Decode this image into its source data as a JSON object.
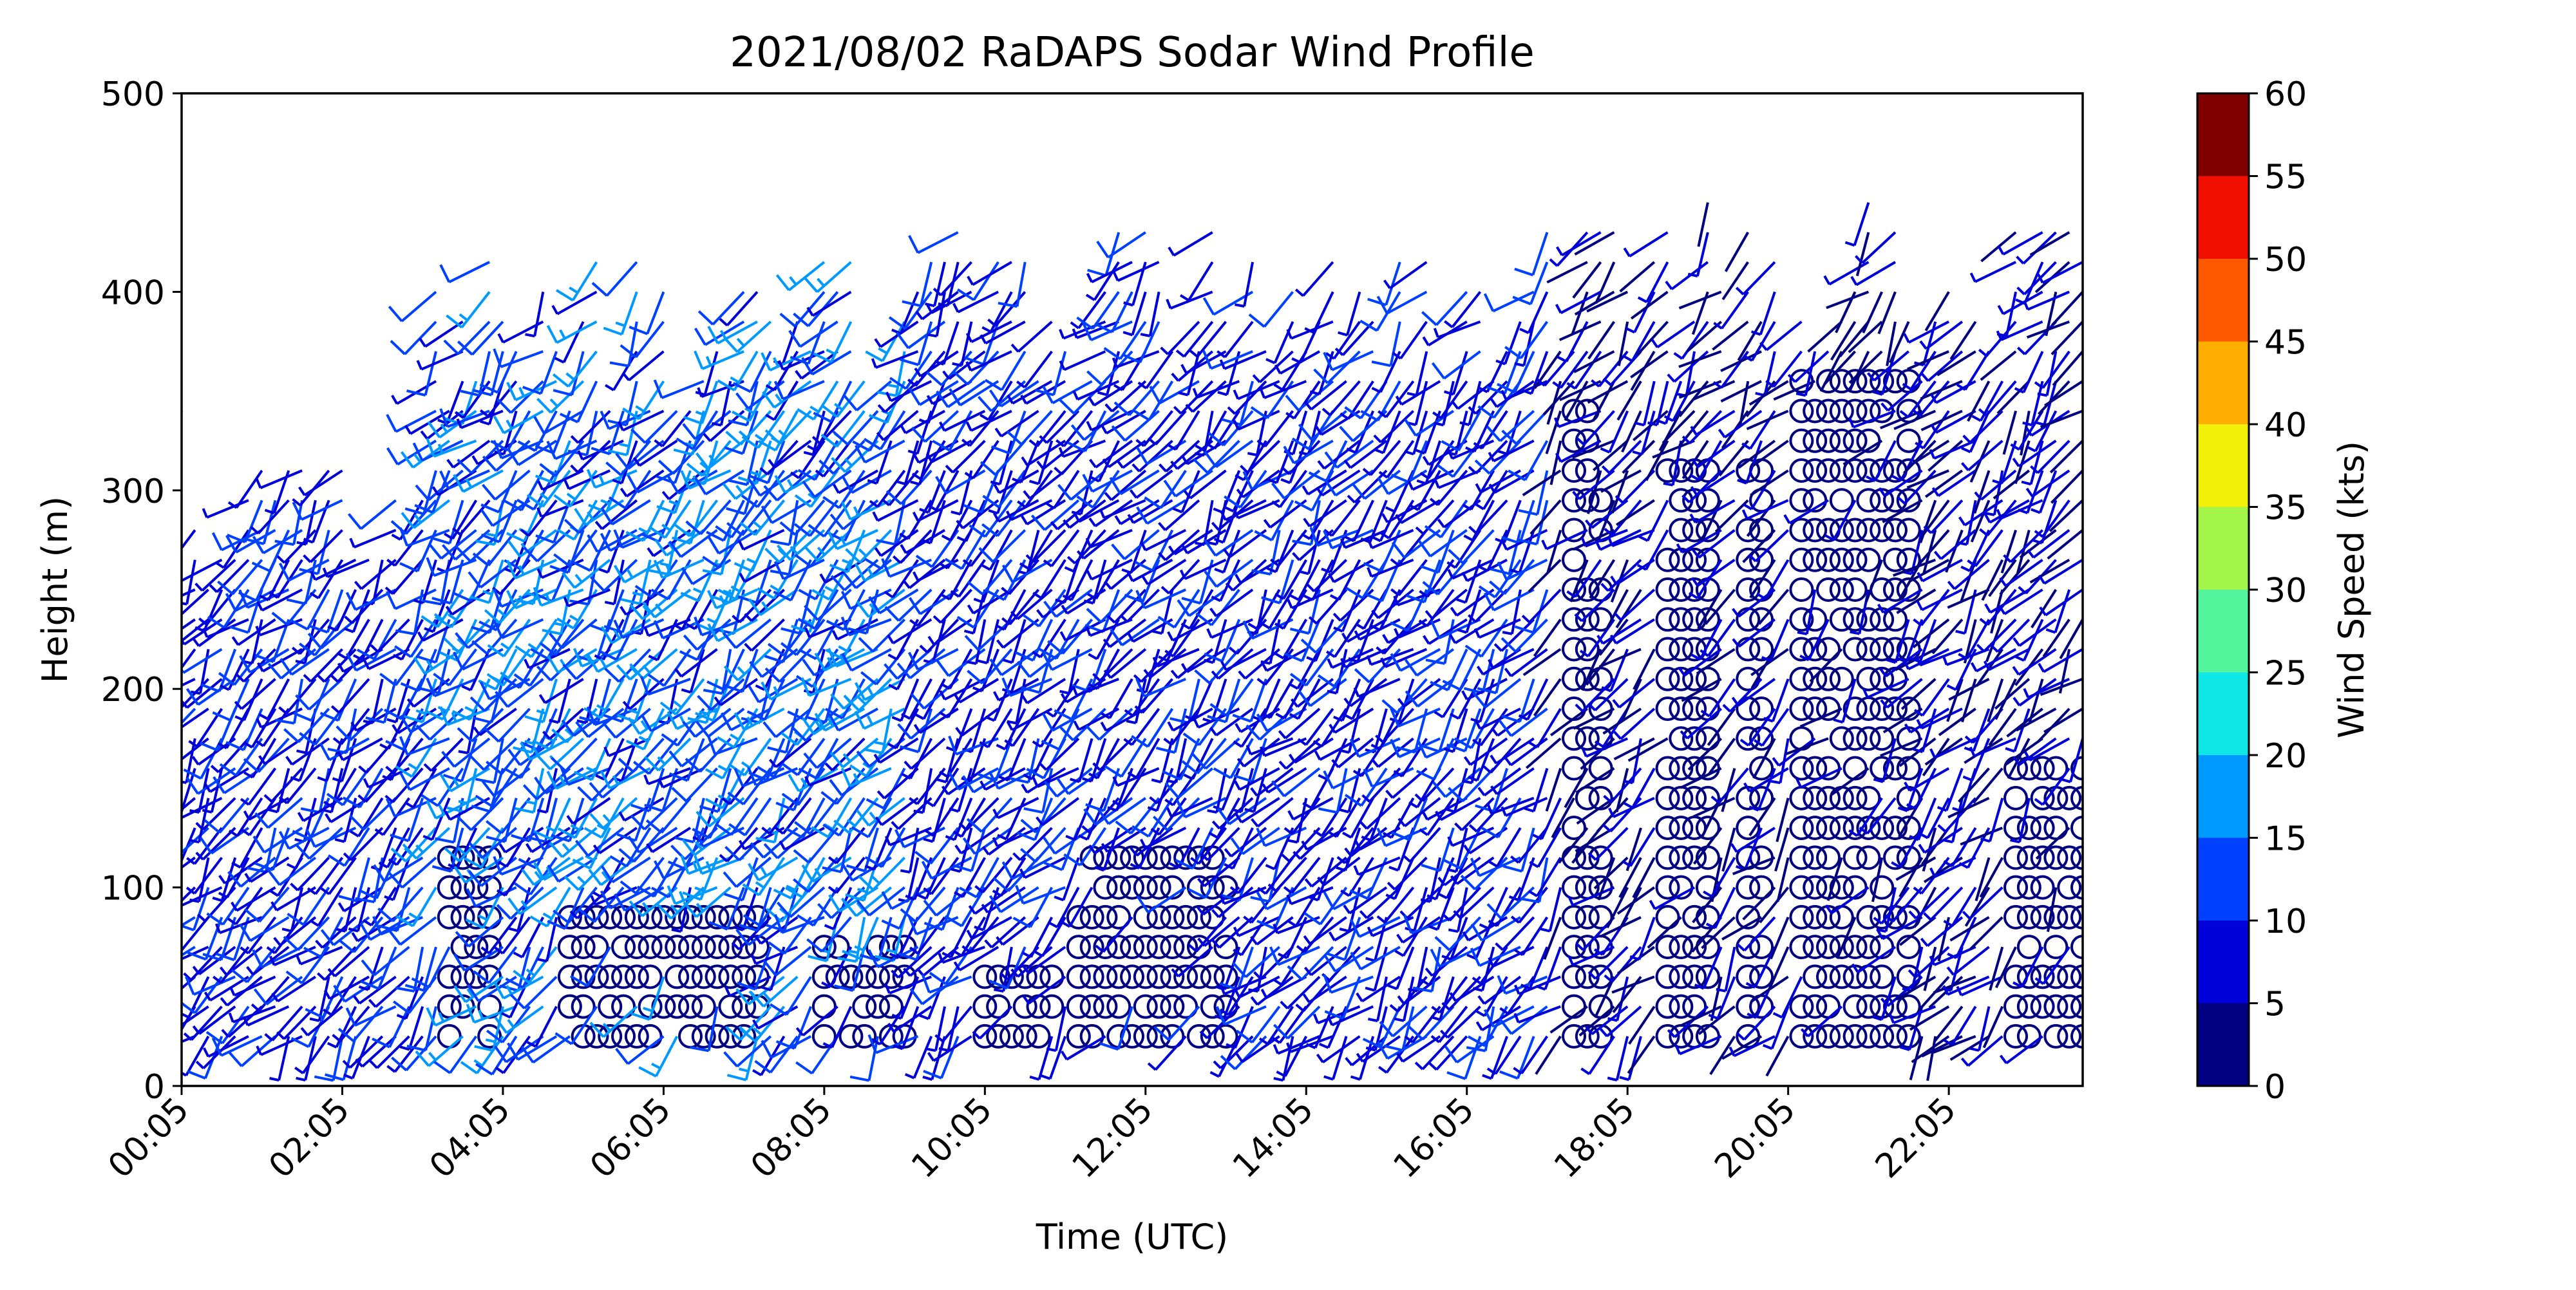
{
  "chart_data": {
    "type": "wind-barbs",
    "title": "2021/08/02 RaDAPS Sodar Wind Profile",
    "xlabel": "Time (UTC)",
    "ylabel": "Height (m)",
    "x_ticklabels": [
      "00:05",
      "02:05",
      "04:05",
      "06:05",
      "08:05",
      "10:05",
      "12:05",
      "14:05",
      "16:05",
      "18:05",
      "20:05",
      "22:05"
    ],
    "x_range_hours": [
      0.0833,
      23.75
    ],
    "ylim": [
      0,
      500
    ],
    "y_ticks": [
      0,
      100,
      200,
      300,
      400,
      500
    ],
    "time_step_minutes": 10,
    "height_step_m": 15,
    "lowest_height_m": 25,
    "colorbar": {
      "label": "Wind Speed (kts)",
      "ticks": [
        0,
        5,
        10,
        15,
        20,
        25,
        30,
        35,
        40,
        45,
        50,
        55,
        60
      ],
      "colors": [
        "#000080",
        "#0000d9",
        "#0040ff",
        "#0099ff",
        "#10e6e6",
        "#55f59e",
        "#a3f549",
        "#f2ef0a",
        "#ffae00",
        "#ff5900",
        "#f00f00",
        "#800000"
      ]
    },
    "series": [
      {
        "time_range": "00:05-03:00",
        "typical_speed_kts": [
          6,
          12
        ],
        "top_height_m": 330,
        "direction": "southerly to south-westerly"
      },
      {
        "time_range": "03:05-09:00",
        "typical_speed_kts": [
          8,
          18
        ],
        "top_height_m": 430,
        "direction": "south-westerly"
      },
      {
        "time_range": "09:05-17:00",
        "typical_speed_kts": [
          6,
          12
        ],
        "top_height_m": 440,
        "direction": "south-westerly"
      },
      {
        "time_range": "17:05-23:45",
        "typical_speed_kts": [
          0,
          10
        ],
        "top_height_m": 450,
        "direction": "southerly to south-westerly"
      }
    ],
    "calm_segments": [
      {
        "time_range": "03:20-04:00",
        "max_height_m": 120
      },
      {
        "time_range": "04:50-07:20",
        "max_height_m": 90
      },
      {
        "time_range": "08:00-09:10",
        "max_height_m": 70
      },
      {
        "time_range": "09:55-11:00",
        "max_height_m": 60
      },
      {
        "time_range": "11:10-13:05",
        "max_height_m": 125
      },
      {
        "time_range": "17:20-17:50",
        "max_height_m": 340
      },
      {
        "time_range": "18:30-19:10",
        "max_height_m": 310
      },
      {
        "time_range": "19:30-19:50",
        "max_height_m": 320
      },
      {
        "time_range": "20:10-21:40",
        "max_height_m": 360
      },
      {
        "time_range": "22:45-23:45",
        "max_height_m": 170
      }
    ]
  }
}
